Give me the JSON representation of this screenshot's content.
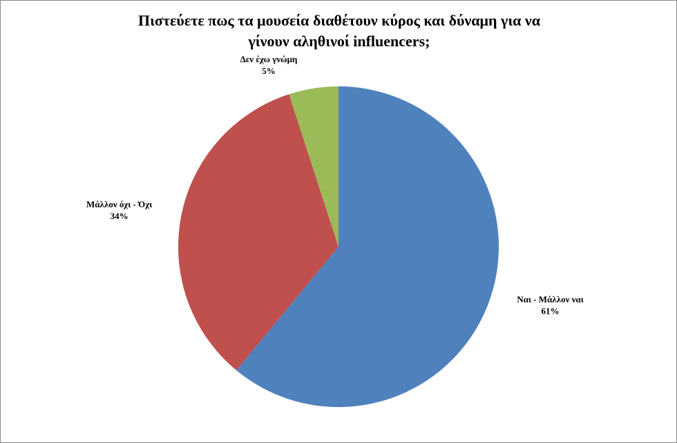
{
  "chart_data": {
    "type": "pie",
    "title": "Πιστεύετε πως τα μουσεία διαθέτουν κύρος και δύναμη για να γίνουν αληθινοί influencers;",
    "categories": [
      "Ναι - Μάλλον ναι",
      "Μάλλον όχι - Όχι",
      "Δεν έχω γνώμη"
    ],
    "values": [
      61,
      34,
      5
    ],
    "value_labels": [
      "61%",
      "34%",
      "5%"
    ],
    "colors": [
      "#4f81bd",
      "#c0504d",
      "#9bbb59"
    ]
  }
}
